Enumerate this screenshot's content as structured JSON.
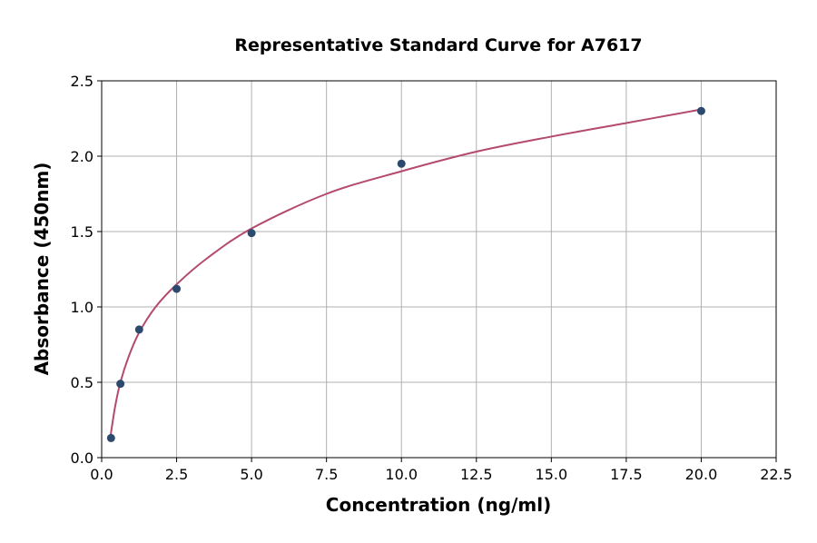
{
  "chart_data": {
    "type": "scatter",
    "title": "Representative Standard Curve for A7617",
    "xlabel": "Concentration (ng/ml)",
    "ylabel": "Absorbance (450nm)",
    "xlim": [
      0,
      22.5
    ],
    "ylim": [
      0,
      2.5
    ],
    "xticks": [
      "0.0",
      "2.5",
      "5.0",
      "7.5",
      "10.0",
      "12.5",
      "15.0",
      "17.5",
      "20.0",
      "22.5"
    ],
    "yticks": [
      "0.0",
      "0.5",
      "1.0",
      "1.5",
      "2.0",
      "2.5"
    ],
    "grid": true,
    "points": {
      "x": [
        0.3125,
        0.625,
        1.25,
        2.5,
        5,
        10,
        20
      ],
      "y": [
        0.13,
        0.49,
        0.85,
        1.12,
        1.49,
        1.95,
        2.3
      ]
    },
    "fit_curve": {
      "x": [
        0.3,
        0.45,
        0.625,
        0.9,
        1.25,
        1.8,
        2.5,
        3.5,
        5,
        7.5,
        10,
        12.5,
        15,
        17.5,
        20
      ],
      "y": [
        0.15,
        0.34,
        0.5,
        0.67,
        0.83,
        1.0,
        1.15,
        1.32,
        1.52,
        1.75,
        1.9,
        2.03,
        2.13,
        2.22,
        2.31
      ]
    },
    "colors": {
      "points": "#2c4a6e",
      "curve": "#b44a6e",
      "grid": "#b0b0b0"
    }
  }
}
